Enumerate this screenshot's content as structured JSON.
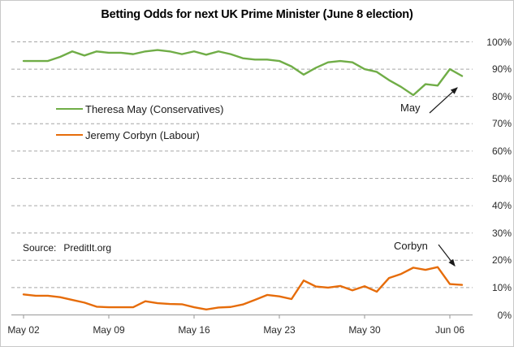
{
  "chart_data": {
    "type": "line",
    "title": "Betting Odds for next UK Prime Minister (June 8 election)",
    "source_label": "Source:",
    "source_value": "PreditIt.org",
    "x": [
      "May 02",
      "May 03",
      "May 04",
      "May 05",
      "May 06",
      "May 07",
      "May 08",
      "May 09",
      "May 10",
      "May 11",
      "May 12",
      "May 13",
      "May 14",
      "May 15",
      "May 16",
      "May 17",
      "May 18",
      "May 19",
      "May 20",
      "May 21",
      "May 22",
      "May 23",
      "May 24",
      "May 25",
      "May 26",
      "May 27",
      "May 28",
      "May 29",
      "May 30",
      "May 31",
      "Jun 01",
      "Jun 02",
      "Jun 03",
      "Jun 04",
      "Jun 05",
      "Jun 06",
      "Jun 07"
    ],
    "series": [
      {
        "name": "Theresa May (Conservatives)",
        "color": "#70AD47",
        "values": [
          93,
          93,
          93,
          94.5,
          96.5,
          95,
          96.5,
          96,
          96,
          95.5,
          96.5,
          97,
          96.5,
          95.5,
          96.5,
          95.3,
          96.5,
          95.5,
          94,
          93.5,
          93.5,
          93,
          91,
          88,
          90.5,
          92.5,
          93,
          92.5,
          90,
          89,
          86,
          83.5,
          80.5,
          84.5,
          84,
          90,
          87.5
        ]
      },
      {
        "name": "Jeremy Corbyn (Labour)",
        "color": "#E66C0A",
        "values": [
          7.5,
          7,
          7,
          6.5,
          5.5,
          4.5,
          3,
          2.8,
          2.8,
          2.8,
          5,
          4.3,
          4,
          3.9,
          2.8,
          2,
          2.7,
          2.9,
          3.8,
          5.5,
          7.3,
          6.8,
          5.8,
          12.6,
          10.4,
          10,
          10.6,
          9,
          10.5,
          8.5,
          13.5,
          15,
          17.3,
          16.5,
          17.5,
          11.3,
          11
        ]
      }
    ],
    "x_ticks": [
      "May 02",
      "May 09",
      "May 16",
      "May 23",
      "May 30",
      "Jun 06"
    ],
    "y_ticks": [
      "0%",
      "10%",
      "20%",
      "30%",
      "40%",
      "50%",
      "60%",
      "70%",
      "80%",
      "90%",
      "100%"
    ],
    "ylim": [
      0,
      100
    ],
    "grid": "dashed horizontal",
    "grid_color": "#A6A6A6",
    "axis_color": "#A6A6A6",
    "legend_position": "inside upper-left",
    "annotations": [
      {
        "text": "May",
        "target_series": "Theresa May (Conservatives)"
      },
      {
        "text": "Corbyn",
        "target_series": "Jeremy Corbyn (Labour)"
      }
    ]
  }
}
